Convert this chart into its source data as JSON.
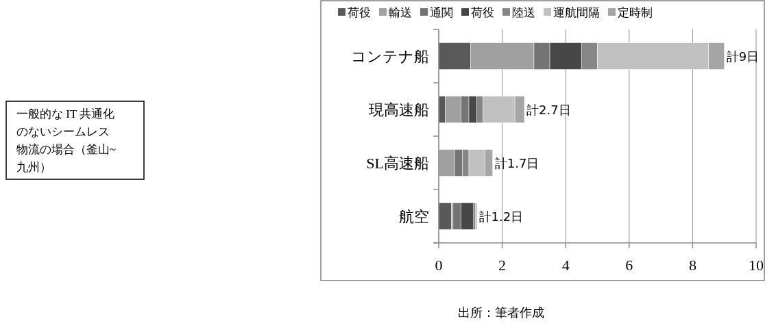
{
  "chart_data": {
    "type": "bar",
    "orientation": "horizontal",
    "stacked": true,
    "categories": [
      "コンテナ船",
      "現高速船",
      "SL高速船",
      "航空"
    ],
    "series": [
      {
        "name": "荷役",
        "color": "#595959",
        "values": [
          1,
          0.2,
          0,
          0.4
        ]
      },
      {
        "name": "輸送",
        "color": "#a0a0a0",
        "values": [
          2,
          0.5,
          0.5,
          0.05
        ]
      },
      {
        "name": "通関",
        "color": "#747474",
        "values": [
          0.5,
          0.25,
          0.25,
          0.25
        ]
      },
      {
        "name": "荷役",
        "color": "#474747",
        "values": [
          1,
          0.25,
          0,
          0.4
        ]
      },
      {
        "name": "陸送",
        "color": "#868686",
        "values": [
          0.5,
          0.2,
          0.2,
          0.05
        ]
      },
      {
        "name": "運航間隔",
        "color": "#c0c0c0",
        "values": [
          3.5,
          1.0,
          0.5,
          0
        ]
      },
      {
        "name": "定時制",
        "color": "#a5a5a5",
        "values": [
          0.5,
          0.3,
          0.25,
          0.05
        ]
      }
    ],
    "totals": [
      "計9日",
      "計2.7日",
      "計1.7日",
      "計1.2日"
    ],
    "xlim": [
      0,
      10
    ],
    "xticks": [
      0,
      2,
      4,
      6,
      8,
      10
    ],
    "grid": "x",
    "legend": "top",
    "annotations": [
      "一般的な IT 共通化のないシームレス物流の場合（釜山~九州）",
      "出所：筆者作成"
    ]
  }
}
